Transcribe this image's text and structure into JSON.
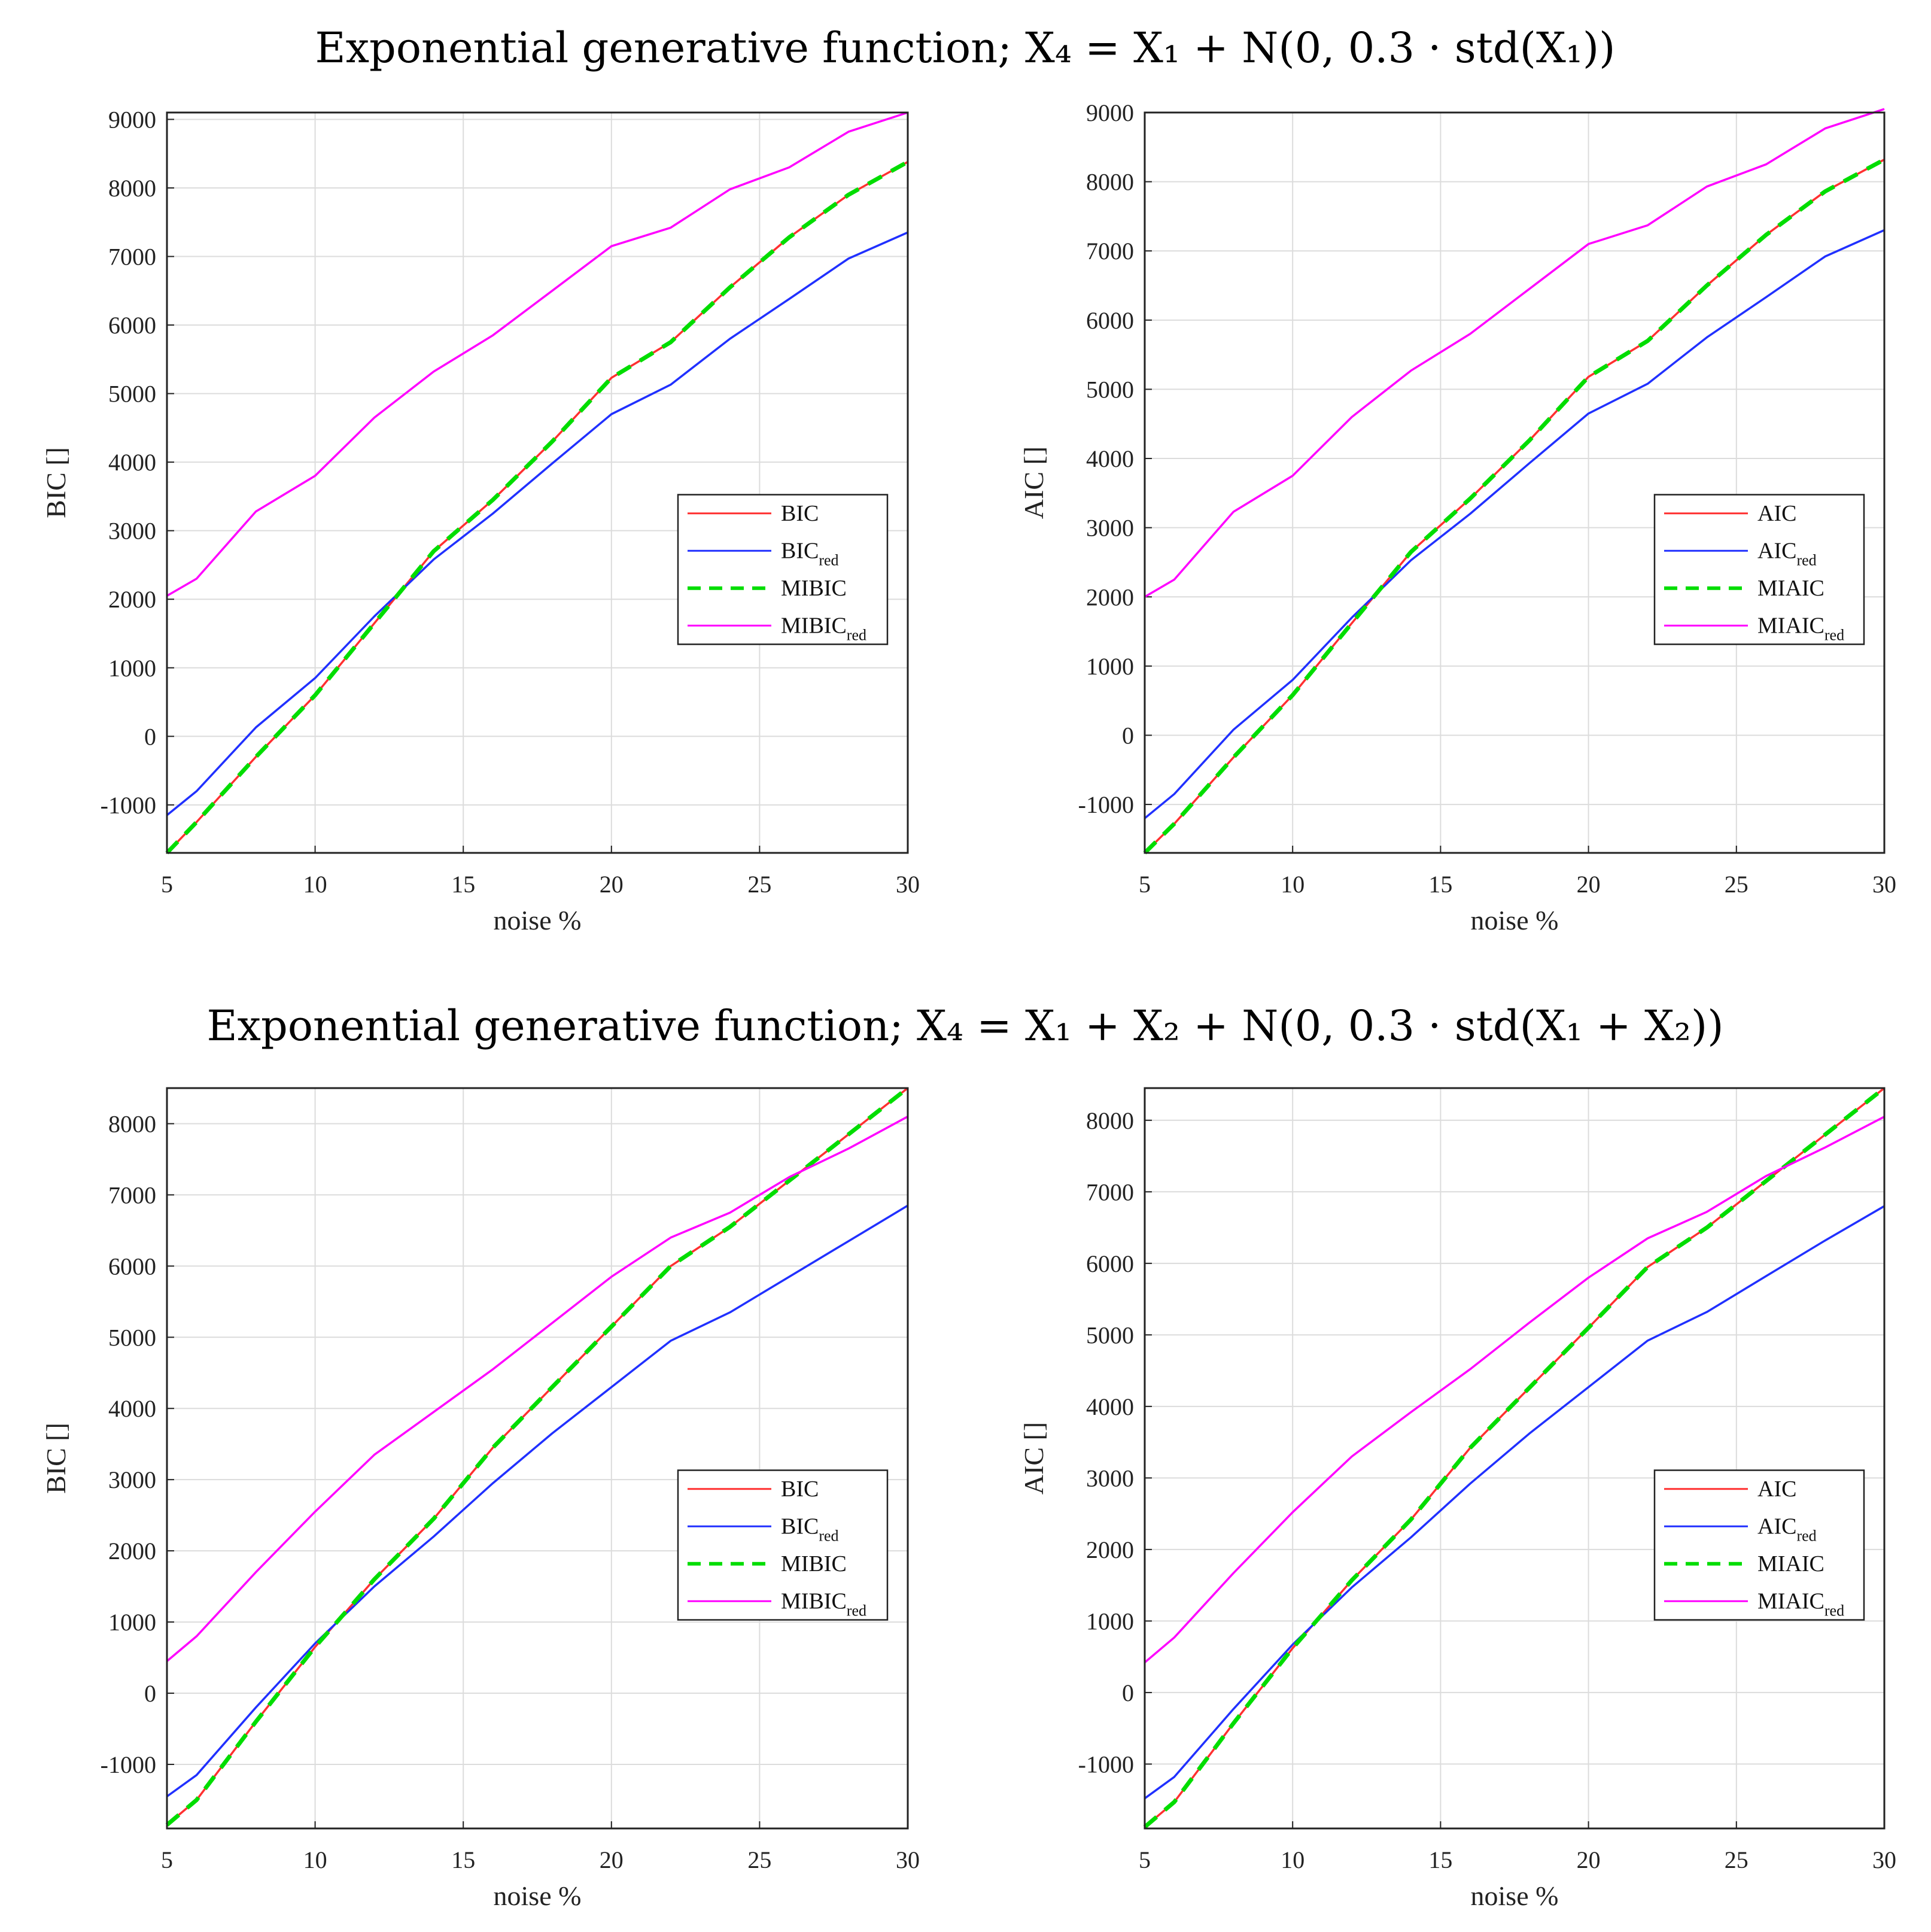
{
  "figure": {
    "section_titles": [
      "Exponential generative function; X₄ = X₁ + N(0, 0.3 · std(X₁))",
      "Exponential generative function; X₄ = X₁ + X₂ + N(0, 0.3 · std(X₁ + X₂))"
    ]
  },
  "colors": {
    "red": "#ff3030",
    "blue": "#2030ff",
    "green": "#00dd00",
    "magenta": "#ff00ff",
    "grid": "#dcdcdc",
    "axis": "#222222"
  },
  "chart_data": [
    {
      "type": "line",
      "title": "Exponential generative function; X₄ = X₁ + N(0, 0.3 · std(X₁))",
      "xlabel": "noise %",
      "ylabel": "BIC []",
      "xlim": [
        5,
        30
      ],
      "ylim": [
        -1700,
        9100
      ],
      "xticks": [
        "5",
        "10",
        "15",
        "20",
        "25",
        "30"
      ],
      "yticks": [
        "-1000",
        "0",
        "1000",
        "2000",
        "3000",
        "4000",
        "5000",
        "6000",
        "7000",
        "8000",
        "9000"
      ],
      "x": [
        5,
        6,
        8,
        10,
        12,
        14,
        16,
        18,
        20,
        22,
        24,
        26,
        28,
        30
      ],
      "legend_position": "right",
      "series": [
        {
          "name": "BIC",
          "label_main": "BIC",
          "label_sub": "",
          "color_key": "red",
          "dash": "solid",
          "values": [
            -1700,
            -1250,
            -300,
            600,
            1650,
            2700,
            3450,
            4300,
            5230,
            5750,
            6550,
            7280,
            7900,
            8380
          ]
        },
        {
          "name": "BIC_red",
          "label_main": "BIC",
          "label_sub": "red",
          "color_key": "blue",
          "dash": "solid",
          "values": [
            -1150,
            -800,
            130,
            850,
            1750,
            2580,
            3250,
            3980,
            4700,
            5130,
            5800,
            6380,
            6970,
            7350
          ]
        },
        {
          "name": "MIBIC",
          "label_main": "MIBIC",
          "label_sub": "",
          "color_key": "green",
          "dash": "dashed",
          "values": [
            -1700,
            -1250,
            -300,
            600,
            1650,
            2700,
            3450,
            4300,
            5230,
            5750,
            6550,
            7280,
            7900,
            8380
          ]
        },
        {
          "name": "MIBIC_red",
          "label_main": "MIBIC",
          "label_sub": "red",
          "color_key": "magenta",
          "dash": "solid",
          "values": [
            2050,
            2300,
            3280,
            3800,
            4650,
            5320,
            5850,
            6500,
            7150,
            7420,
            7980,
            8300,
            8820,
            9100
          ]
        }
      ]
    },
    {
      "type": "line",
      "title": "",
      "xlabel": "noise %",
      "ylabel": "AIC []",
      "xlim": [
        5,
        30
      ],
      "ylim": [
        -1700,
        9000
      ],
      "xticks": [
        "5",
        "10",
        "15",
        "20",
        "25",
        "30"
      ],
      "yticks": [
        "-1000",
        "0",
        "1000",
        "2000",
        "3000",
        "4000",
        "5000",
        "6000",
        "7000",
        "8000",
        "9000"
      ],
      "x": [
        5,
        6,
        8,
        10,
        12,
        14,
        16,
        18,
        20,
        22,
        24,
        26,
        28,
        30
      ],
      "legend_position": "right",
      "series": [
        {
          "name": "AIC",
          "label_main": "AIC",
          "label_sub": "",
          "color_key": "red",
          "dash": "solid",
          "values": [
            -1700,
            -1280,
            -320,
            580,
            1620,
            2650,
            3420,
            4260,
            5180,
            5700,
            6500,
            7230,
            7860,
            8320
          ]
        },
        {
          "name": "AIC_red",
          "label_main": "AIC",
          "label_sub": "red",
          "color_key": "blue",
          "dash": "solid",
          "values": [
            -1200,
            -850,
            80,
            800,
            1700,
            2530,
            3200,
            3930,
            4650,
            5080,
            5750,
            6330,
            6920,
            7300
          ]
        },
        {
          "name": "MIAIC",
          "label_main": "MIAIC",
          "label_sub": "",
          "color_key": "green",
          "dash": "dashed",
          "values": [
            -1700,
            -1280,
            -320,
            580,
            1620,
            2650,
            3420,
            4260,
            5180,
            5700,
            6500,
            7230,
            7860,
            8320
          ]
        },
        {
          "name": "MIAIC_red",
          "label_main": "MIAIC",
          "label_sub": "red",
          "color_key": "magenta",
          "dash": "solid",
          "values": [
            2000,
            2250,
            3230,
            3750,
            4600,
            5270,
            5800,
            6450,
            7100,
            7370,
            7930,
            8250,
            8770,
            9050
          ]
        }
      ]
    },
    {
      "type": "line",
      "title": "Exponential generative function; X₄ = X₁ + X₂ + N(0, 0.3 · std(X₁ + X₂))",
      "xlabel": "noise %",
      "ylabel": "BIC []",
      "xlim": [
        5,
        30
      ],
      "ylim": [
        -1900,
        8500
      ],
      "xticks": [
        "5",
        "10",
        "15",
        "20",
        "25",
        "30"
      ],
      "yticks": [
        "-1000",
        "0",
        "1000",
        "2000",
        "3000",
        "4000",
        "5000",
        "6000",
        "7000",
        "8000"
      ],
      "x": [
        5,
        6,
        8,
        10,
        12,
        14,
        16,
        18,
        20,
        22,
        24,
        26,
        28,
        30
      ],
      "legend_position": "right",
      "series": [
        {
          "name": "BIC",
          "label_main": "BIC",
          "label_sub": "",
          "color_key": "red",
          "dash": "solid",
          "values": [
            -1850,
            -1500,
            -400,
            650,
            1600,
            2450,
            3450,
            4300,
            5150,
            6000,
            6550,
            7200,
            7850,
            8500
          ]
        },
        {
          "name": "BIC_red",
          "label_main": "BIC",
          "label_sub": "red",
          "color_key": "blue",
          "dash": "solid",
          "values": [
            -1450,
            -1150,
            -200,
            700,
            1500,
            2200,
            2950,
            3650,
            4300,
            4950,
            5350,
            5850,
            6350,
            6850
          ]
        },
        {
          "name": "MIBIC",
          "label_main": "MIBIC",
          "label_sub": "",
          "color_key": "green",
          "dash": "dashed",
          "values": [
            -1850,
            -1500,
            -400,
            650,
            1600,
            2450,
            3450,
            4300,
            5150,
            6000,
            6550,
            7200,
            7850,
            8500
          ]
        },
        {
          "name": "MIBIC_red",
          "label_main": "MIBIC",
          "label_sub": "red",
          "color_key": "magenta",
          "dash": "solid",
          "values": [
            450,
            800,
            1700,
            2550,
            3350,
            3950,
            4550,
            5200,
            5850,
            6400,
            6750,
            7250,
            7650,
            8100
          ]
        }
      ]
    },
    {
      "type": "line",
      "title": "",
      "xlabel": "noise %",
      "ylabel": "AIC []",
      "xlim": [
        5,
        30
      ],
      "ylim": [
        -1900,
        8450
      ],
      "xticks": [
        "5",
        "10",
        "15",
        "20",
        "25",
        "30"
      ],
      "yticks": [
        "-1000",
        "0",
        "1000",
        "2000",
        "3000",
        "4000",
        "5000",
        "6000",
        "7000",
        "8000"
      ],
      "x": [
        5,
        6,
        8,
        10,
        12,
        14,
        16,
        18,
        20,
        22,
        24,
        26,
        28,
        30
      ],
      "legend_position": "right",
      "series": [
        {
          "name": "AIC",
          "label_main": "AIC",
          "label_sub": "",
          "color_key": "red",
          "dash": "solid",
          "values": [
            -1880,
            -1530,
            -430,
            620,
            1570,
            2420,
            3420,
            4260,
            5100,
            5950,
            6500,
            7150,
            7800,
            8450
          ]
        },
        {
          "name": "AIC_red",
          "label_main": "AIC",
          "label_sub": "red",
          "color_key": "blue",
          "dash": "solid",
          "values": [
            -1480,
            -1180,
            -230,
            670,
            1470,
            2170,
            2920,
            3620,
            4270,
            4920,
            5320,
            5820,
            6320,
            6800
          ]
        },
        {
          "name": "MIAIC",
          "label_main": "MIAIC",
          "label_sub": "",
          "color_key": "green",
          "dash": "dashed",
          "values": [
            -1880,
            -1530,
            -430,
            620,
            1570,
            2420,
            3420,
            4260,
            5100,
            5950,
            6500,
            7150,
            7800,
            8450
          ]
        },
        {
          "name": "MIAIC_red",
          "label_main": "MIAIC",
          "label_sub": "red",
          "color_key": "magenta",
          "dash": "solid",
          "values": [
            420,
            770,
            1670,
            2520,
            3300,
            3920,
            4520,
            5170,
            5800,
            6350,
            6720,
            7220,
            7620,
            8050
          ]
        }
      ]
    }
  ]
}
